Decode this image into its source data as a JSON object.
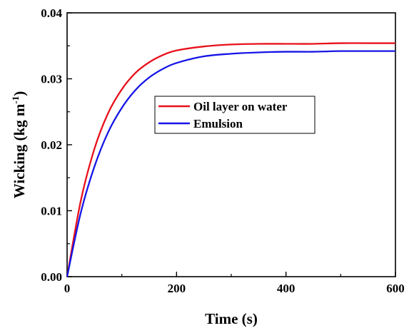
{
  "chart_data": {
    "type": "line",
    "title": "",
    "xlabel": "Time (s)",
    "ylabel_main": "Wicking (kg m",
    "ylabel_sup": "-1",
    "ylabel_close": ")",
    "xlim": [
      0,
      600
    ],
    "ylim": [
      0,
      0.04
    ],
    "xticks": [
      0,
      200,
      400,
      600
    ],
    "xtick_labels": [
      "0",
      "200",
      "400",
      "600"
    ],
    "yticks": [
      0,
      0.01,
      0.02,
      0.03,
      0.04
    ],
    "ytick_labels": [
      "0.00",
      "0.01",
      "0.02",
      "0.03",
      "0.04"
    ],
    "grid": false,
    "legend_position": "center",
    "x": [
      0,
      25,
      50,
      75,
      100,
      125,
      150,
      175,
      200,
      250,
      300,
      350,
      400,
      450,
      500,
      550,
      600
    ],
    "series": [
      {
        "name": "Oil layer on water",
        "color": "#e8101a",
        "values": [
          0.0,
          0.0115,
          0.0194,
          0.0248,
          0.0284,
          0.0309,
          0.0325,
          0.0336,
          0.0343,
          0.0349,
          0.0352,
          0.0353,
          0.0353,
          0.0353,
          0.0354,
          0.0354,
          0.0354
        ]
      },
      {
        "name": "Emulsion",
        "color": "#1515e6",
        "values": [
          0.0,
          0.0097,
          0.0167,
          0.0219,
          0.0256,
          0.0283,
          0.0302,
          0.0315,
          0.0324,
          0.0334,
          0.0338,
          0.034,
          0.0341,
          0.0341,
          0.0342,
          0.0342,
          0.0342
        ]
      }
    ]
  }
}
